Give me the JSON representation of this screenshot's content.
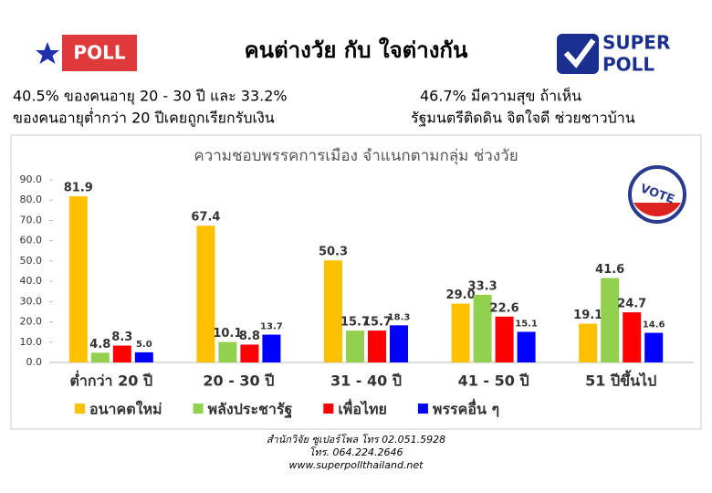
{
  "header": {
    "logo_left": "POLL",
    "title": "คนต่างวัย กับ ใจต่างกัน",
    "logo_right_top": "SUPER",
    "logo_right_bottom": "POLL"
  },
  "notes": {
    "left": [
      "40.5% ของคนอายุ 20 - 30 ปี และ 33.2%",
      "ของคนอายุต่ำกว่า 20 ปีเคยถูกเรียกรับเงิน"
    ],
    "right": [
      "46.7% มีความสุข ถ้าเห็น",
      "รัฐมนตรีติดดิน จิตใจดี ช่วยชาวบ้าน"
    ]
  },
  "chart_data": {
    "type": "bar",
    "title": "ความชอบพรรคการเมือง  จำแนกตามกลุ่ม  ช่วงวัย",
    "badge": "VOTE",
    "categories": [
      "ต่ำกว่า 20 ปี",
      "20 - 30 ปี",
      "31 - 40 ปี",
      "41 - 50 ปี",
      "51 ปีขึ้นไป"
    ],
    "series": [
      {
        "name": "อนาคตใหม่",
        "color": "#FFC000",
        "values": [
          81.9,
          67.4,
          50.3,
          29.0,
          19.1
        ],
        "value_labels": [
          "81.9",
          "67.4",
          "50.3",
          "29.0",
          "19.1"
        ]
      },
      {
        "name": "พลังประชารัฐ",
        "color": "#92D050",
        "values": [
          4.8,
          10.1,
          15.7,
          33.3,
          41.6
        ],
        "value_labels": [
          "4.8",
          "10.1",
          "15.7",
          "33.3",
          "41.6"
        ]
      },
      {
        "name": "เพื่อไทย",
        "color": "#FF0000",
        "values": [
          8.3,
          8.8,
          15.7,
          22.6,
          24.7
        ],
        "value_labels": [
          "8.3",
          "8.8",
          "15.7",
          "22.6",
          "24.7"
        ]
      },
      {
        "name": "พรรคอื่น ๆ",
        "color": "#0000FF",
        "values": [
          5.0,
          13.7,
          18.3,
          15.1,
          14.6
        ],
        "value_labels": [
          "5.0",
          "13.7",
          "18.3",
          "15.1",
          "14.6"
        ]
      }
    ],
    "ylim": [
      0,
      90
    ],
    "yticks": [
      {
        "value": 0,
        "label": "0.0"
      },
      {
        "value": 10,
        "label": "10.0"
      },
      {
        "value": 20,
        "label": "20.0"
      },
      {
        "value": 30,
        "label": "30.0"
      },
      {
        "value": 40,
        "label": "40.0"
      },
      {
        "value": 50,
        "label": "50.0"
      },
      {
        "value": 60,
        "label": "60.0"
      },
      {
        "value": 70,
        "label": "70.0"
      },
      {
        "value": 80,
        "label": "80.0"
      },
      {
        "value": 90,
        "label": "90.0"
      }
    ],
    "grid": false
  },
  "footer": [
    "สำนักวิจัย ซูเปอร์โพล โทร 02.051.5928",
    "โทร. 064.224.2646",
    "www.superpollthailand.net"
  ]
}
